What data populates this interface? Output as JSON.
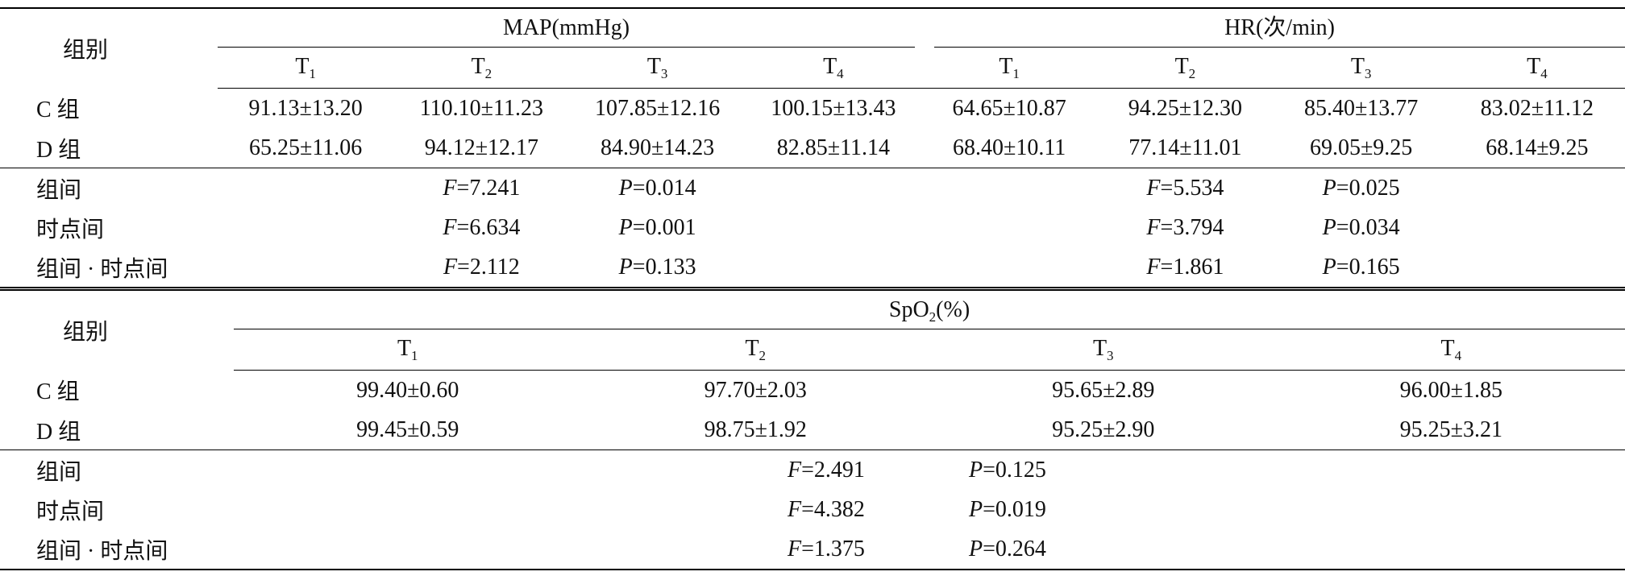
{
  "tables": [
    {
      "group_label": "组别",
      "groups": [
        {
          "title": "MAP(mmHg)",
          "columns": [
            {
              "base": "T",
              "sub": "1"
            },
            {
              "base": "T",
              "sub": "2"
            },
            {
              "base": "T",
              "sub": "3"
            },
            {
              "base": "T",
              "sub": "4"
            }
          ]
        },
        {
          "title": "HR(次/min)",
          "columns": [
            {
              "base": "T",
              "sub": "1"
            },
            {
              "base": "T",
              "sub": "2"
            },
            {
              "base": "T",
              "sub": "3"
            },
            {
              "base": "T",
              "sub": "4"
            }
          ]
        }
      ],
      "rows": [
        {
          "label": "C 组",
          "values": [
            "91.13±13.20",
            "110.10±11.23",
            "107.85±12.16",
            "100.15±13.43",
            "64.65±10.87",
            "94.25±12.30",
            "85.40±13.77",
            "83.02±11.12"
          ]
        },
        {
          "label": "D 组",
          "values": [
            "65.25±11.06",
            "94.12±12.17",
            "84.90±14.23",
            "82.85±11.14",
            "68.40±10.11",
            "77.14±11.01",
            "69.05±9.25",
            "68.14±9.25"
          ]
        }
      ],
      "stats": [
        {
          "label": "组间",
          "tests": [
            {
              "F": "F=7.241",
              "P": "P=0.014"
            },
            {
              "F": "F=5.534",
              "P": "P=0.025"
            }
          ]
        },
        {
          "label": "时点间",
          "tests": [
            {
              "F": "F=6.634",
              "P": "P=0.001"
            },
            {
              "F": "F=3.794",
              "P": "P=0.034"
            }
          ]
        },
        {
          "label": "组间 · 时点间",
          "tests": [
            {
              "F": "F=2.112",
              "P": "P=0.133"
            },
            {
              "F": "F=1.861",
              "P": "P=0.165"
            }
          ]
        }
      ]
    },
    {
      "group_label": "组别",
      "groups": [
        {
          "title": {
            "base": "SpO",
            "sub": "2",
            "rest": "(%)"
          },
          "columns": [
            {
              "base": "T",
              "sub": "1"
            },
            {
              "base": "T",
              "sub": "2"
            },
            {
              "base": "T",
              "sub": "3"
            },
            {
              "base": "T",
              "sub": "4"
            }
          ]
        }
      ],
      "rows": [
        {
          "label": "C 组",
          "values": [
            "99.40±0.60",
            "97.70±2.03",
            "95.65±2.89",
            "96.00±1.85"
          ]
        },
        {
          "label": "D 组",
          "values": [
            "99.45±0.59",
            "98.75±1.92",
            "95.25±2.90",
            "95.25±3.21"
          ]
        }
      ],
      "stats": [
        {
          "label": "组间",
          "tests": [
            {
              "F": "F=2.491",
              "P": "P=0.125"
            }
          ]
        },
        {
          "label": "时点间",
          "tests": [
            {
              "F": "F=4.382",
              "P": "P=0.019"
            }
          ]
        },
        {
          "label": "组间 · 时点间",
          "tests": [
            {
              "F": "F=1.375",
              "P": "P=0.264"
            }
          ]
        }
      ]
    }
  ]
}
